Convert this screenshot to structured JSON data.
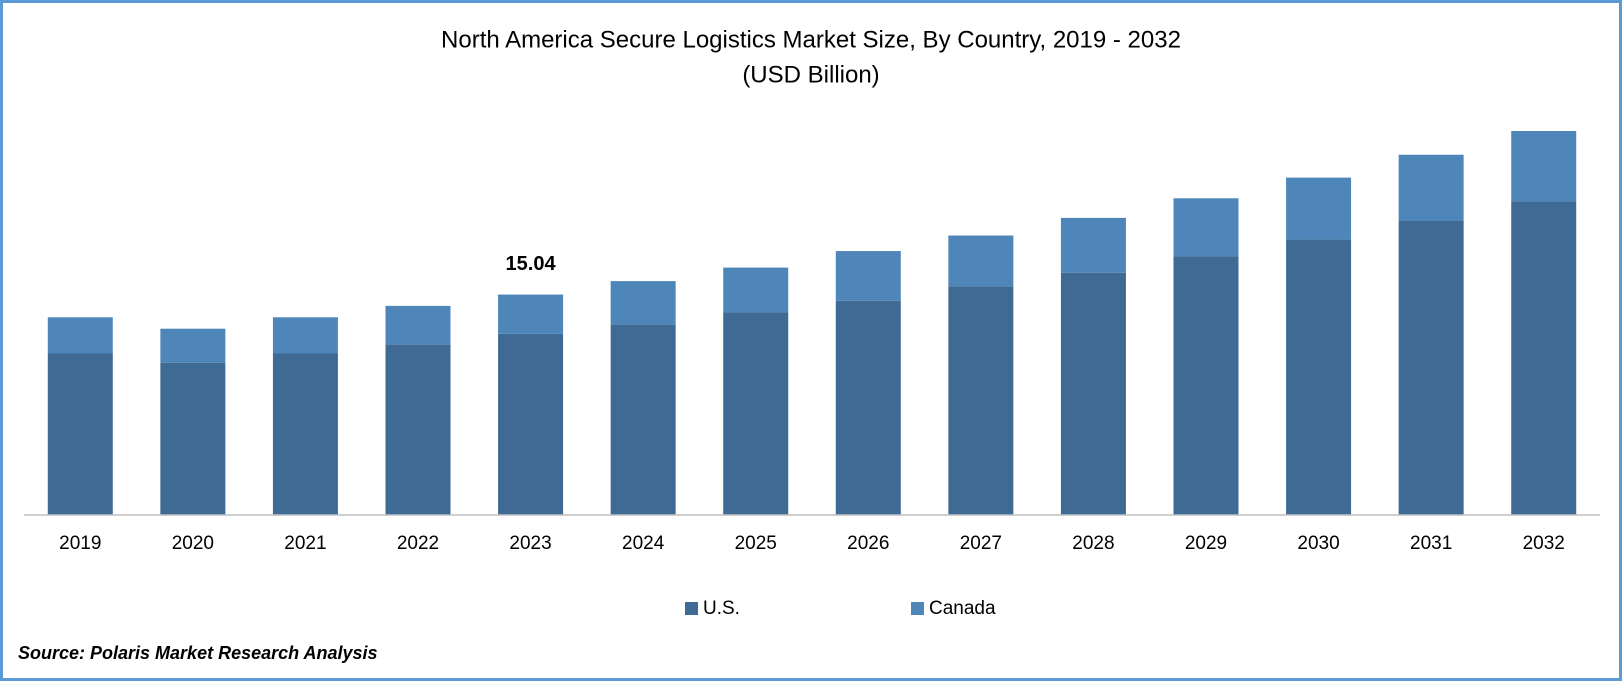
{
  "chart_data": {
    "type": "stacked_bar",
    "title": "North America Secure Logistics Market Size, By Country, 2019 - 2032",
    "subtitle": "(USD Billion)",
    "categories": [
      "2019",
      "2020",
      "2021",
      "2022",
      "2023",
      "2024",
      "2025",
      "2026",
      "2027",
      "2028",
      "2029",
      "2030",
      "2031",
      "2032"
    ],
    "series": [
      {
        "name": "U.S.",
        "color": "#3e6a93",
        "values": [
          11.02,
          10.38,
          11.02,
          11.65,
          12.36,
          12.99,
          13.84,
          14.62,
          15.61,
          16.53,
          17.66,
          18.79,
          20.06,
          21.4
        ]
      },
      {
        "name": "Canada",
        "color": "#4f86b9",
        "values": [
          2.47,
          2.33,
          2.47,
          2.62,
          2.68,
          2.97,
          3.04,
          3.39,
          3.46,
          3.74,
          3.95,
          4.23,
          4.52,
          4.8
        ]
      }
    ],
    "annotation": {
      "label": "15.04",
      "value": 15.04,
      "category": "2023"
    },
    "legend": "bottom",
    "source": "Source: Polaris Market Research Analysis"
  }
}
